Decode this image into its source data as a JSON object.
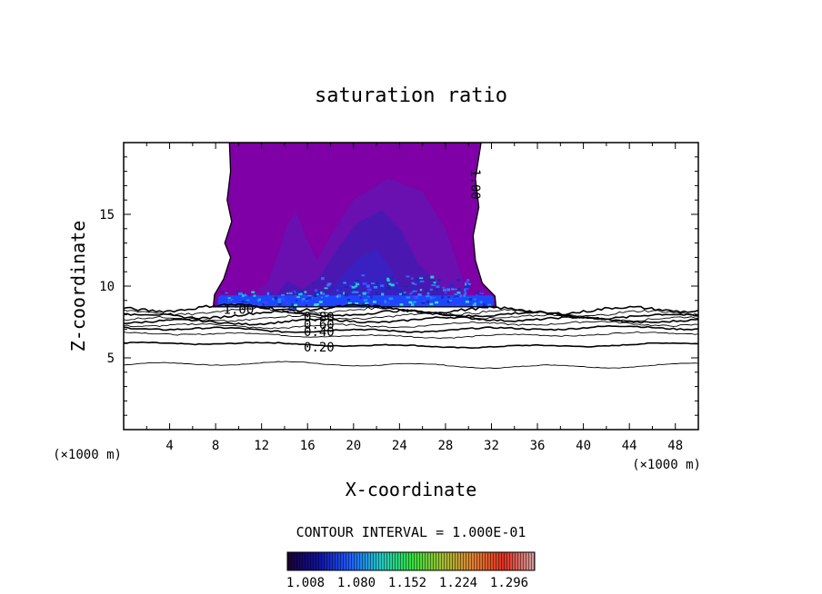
{
  "chart_data": {
    "type": "contour",
    "title": "saturation ratio",
    "xlabel": "X-coordinate",
    "ylabel": "Z-coordinate",
    "x_unit": "(×1000 m)",
    "y_unit": "(×1000 m)",
    "xlim": [
      0,
      50
    ],
    "ylim": [
      0,
      20
    ],
    "x_ticks": [
      4,
      8,
      12,
      16,
      20,
      24,
      28,
      32,
      36,
      40,
      44,
      48
    ],
    "y_ticks": [
      5,
      10,
      15
    ],
    "contour_interval_text": "CONTOUR INTERVAL = 1.000E-01",
    "contour_lines": [
      {
        "level": 0.1,
        "z_km": 4.5
      },
      {
        "level": 0.2,
        "z_km": 5.9
      },
      {
        "level": 0.3,
        "z_km": 6.6
      },
      {
        "level": 0.4,
        "z_km": 7.0
      },
      {
        "level": 0.5,
        "z_km": 7.3
      },
      {
        "level": 0.6,
        "z_km": 7.6
      },
      {
        "level": 0.7,
        "z_km": 7.8
      },
      {
        "level": 0.8,
        "z_km": 8.0
      },
      {
        "level": 0.9,
        "z_km": 8.2
      },
      {
        "level": 1.0,
        "z_km": 8.4
      }
    ],
    "contour_labels": [
      "1.00",
      "0.20",
      "0.40",
      "0.60",
      "0.80",
      "1.00"
    ],
    "supersaturated_region": {
      "x_km": [
        8,
        32
      ],
      "z_km": [
        8.5,
        20
      ]
    },
    "colorbar": {
      "ticks": [
        "1.008",
        "1.080",
        "1.152",
        "1.224",
        "1.296"
      ],
      "colors": [
        "#1a0033",
        "#1010a0",
        "#1e5aff",
        "#20c8c8",
        "#30e040",
        "#a0c030",
        "#e08030",
        "#e03020",
        "#d0a0a0"
      ]
    },
    "fill_colors": {
      "outer": "#7e00a6",
      "mid": "#6a10b0",
      "inner": "#4a18b0",
      "core": "#3a20c0",
      "base": "#1e46ff"
    }
  }
}
